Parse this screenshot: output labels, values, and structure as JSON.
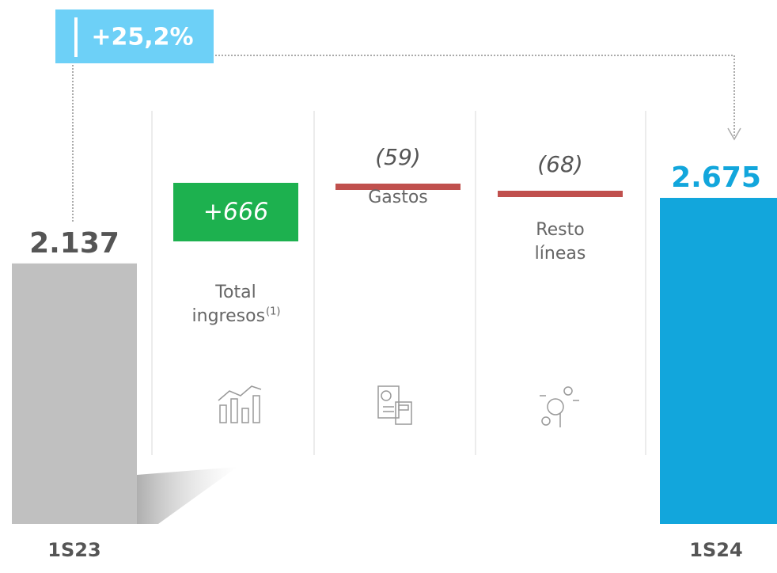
{
  "chart_data": {
    "type": "waterfall",
    "categories": [
      "1S23",
      "Total ingresos",
      "Gastos",
      "Resto líneas",
      "1S24"
    ],
    "category_footnotes": [
      null,
      "(1)",
      null,
      null,
      null
    ],
    "values": [
      2137,
      666,
      -59,
      -68,
      2675
    ],
    "value_labels": [
      "2.137",
      "+666",
      "(59)",
      "(68)",
      "2.675"
    ],
    "kinds": [
      "total",
      "delta",
      "delta",
      "delta",
      "total"
    ],
    "colors": [
      "#c0c0c0",
      "#1db14f",
      "#c0504d",
      "#c0504d",
      "#12a6dc"
    ],
    "growth_label": "+25,2%",
    "growth_color": "#6dd0f7"
  }
}
